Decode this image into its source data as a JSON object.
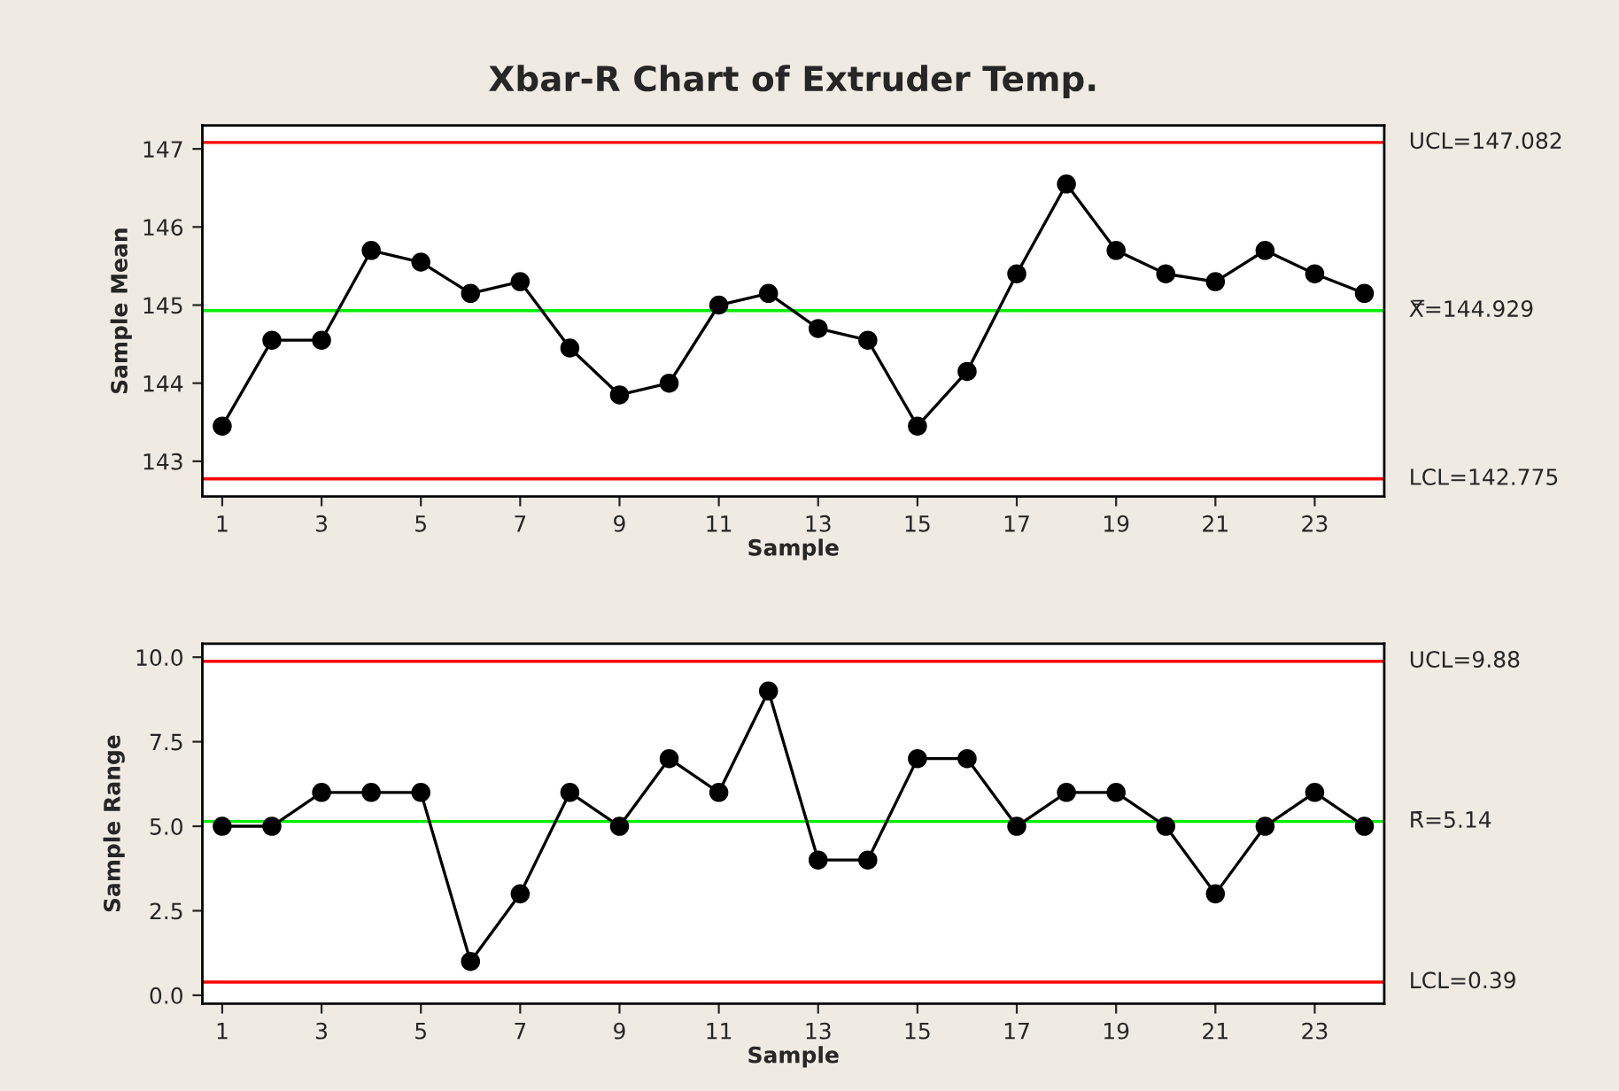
{
  "chart_data": [
    {
      "type": "line",
      "title": "Xbar-R Chart of Extruder Temp.",
      "xlabel": "Sample",
      "ylabel": "Sample Mean",
      "x": [
        1,
        2,
        3,
        4,
        5,
        6,
        7,
        8,
        9,
        10,
        11,
        12,
        13,
        14,
        15,
        16,
        17,
        18,
        19,
        20,
        21,
        22,
        23,
        24
      ],
      "series": [
        {
          "color": "#000000",
          "values": [
            143.45,
            144.55,
            144.55,
            145.7,
            145.55,
            145.15,
            145.3,
            144.45,
            143.85,
            144.0,
            145.0,
            145.15,
            144.7,
            144.55,
            143.45,
            144.15,
            145.4,
            146.55,
            145.7,
            145.4,
            145.3,
            145.7,
            145.4,
            145.15
          ]
        }
      ],
      "xlim": [
        0.6,
        24.4
      ],
      "xticks": [
        1,
        3,
        5,
        7,
        9,
        11,
        13,
        15,
        17,
        19,
        21,
        23
      ],
      "ylim": [
        142.55,
        147.3
      ],
      "yticks": [
        143,
        144,
        145,
        146,
        147
      ],
      "marker": "circle",
      "grid": false,
      "ref_lines": [
        {
          "axis": "y",
          "value": 147.082,
          "label": "UCL=147.082",
          "color": "#ff0000"
        },
        {
          "axis": "y",
          "value": 144.929,
          "label": "X̿=144.929",
          "color": "#00ee00"
        },
        {
          "axis": "y",
          "value": 142.775,
          "label": "LCL=142.775",
          "color": "#ff0000"
        }
      ]
    },
    {
      "type": "line",
      "xlabel": "Sample",
      "ylabel": "Sample Range",
      "x": [
        1,
        2,
        3,
        4,
        5,
        6,
        7,
        8,
        9,
        10,
        11,
        12,
        13,
        14,
        15,
        16,
        17,
        18,
        19,
        20,
        21,
        22,
        23,
        24
      ],
      "series": [
        {
          "color": "#000000",
          "values": [
            5,
            5,
            6,
            6,
            6,
            1,
            3,
            6,
            5,
            7,
            6,
            9,
            4,
            4,
            7,
            7,
            5,
            6,
            6,
            5,
            3,
            5,
            6,
            5
          ]
        }
      ],
      "xlim": [
        0.6,
        24.4
      ],
      "xticks": [
        1,
        3,
        5,
        7,
        9,
        11,
        13,
        15,
        17,
        19,
        21,
        23
      ],
      "ylim": [
        -0.25,
        10.4
      ],
      "yticks": [
        {
          "value": 0,
          "label": "0.0"
        },
        {
          "value": 2.5,
          "label": "2.5"
        },
        {
          "value": 5,
          "label": "5.0"
        },
        {
          "value": 7.5,
          "label": "7.5"
        },
        {
          "value": 10,
          "label": "10.0"
        }
      ],
      "marker": "circle",
      "grid": false,
      "ref_lines": [
        {
          "axis": "y",
          "value": 9.88,
          "label": "UCL=9.88",
          "color": "#ff0000"
        },
        {
          "axis": "y",
          "value": 5.14,
          "label": "R̄=5.14",
          "color": "#00ee00"
        },
        {
          "axis": "y",
          "value": 0.39,
          "label": "LCL=0.39",
          "color": "#ff0000"
        }
      ]
    }
  ]
}
